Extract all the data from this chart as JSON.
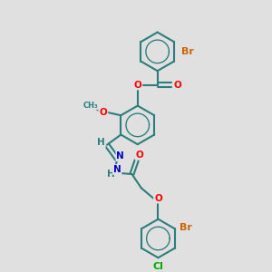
{
  "background_color": "#e0e0e0",
  "bond_color": "#2d7d7d",
  "bond_width": 1.5,
  "atom_colors": {
    "O": "#ff0000",
    "N": "#0000cc",
    "Br": "#cc6600",
    "Cl": "#00aa00",
    "C": "#2d7d7d",
    "H": "#2d7d7d"
  },
  "font_size": 7.5,
  "figsize": [
    3.0,
    3.0
  ],
  "dpi": 100
}
